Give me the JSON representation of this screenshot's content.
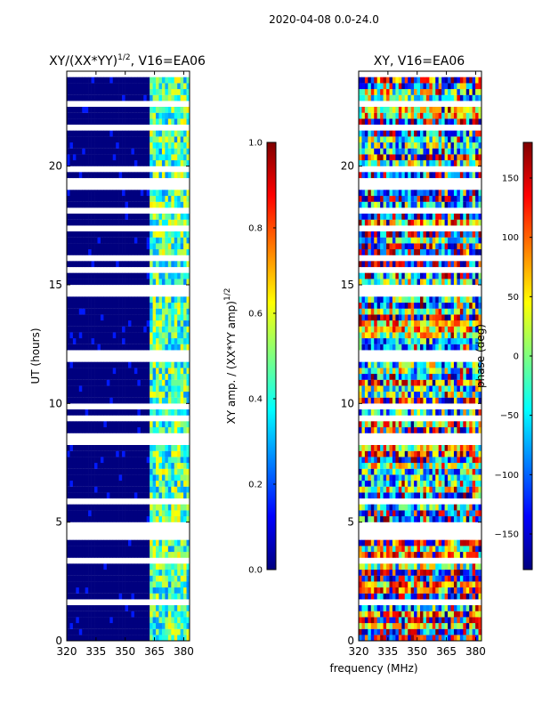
{
  "suptitle": "2020-04-08 0.0-24.0",
  "colors": {
    "background": "#00007f",
    "jet": [
      "#00007f",
      "#0000ff",
      "#007fff",
      "#00ffff",
      "#7fff7f",
      "#ffff00",
      "#ff7f00",
      "#ff0000",
      "#7f0000"
    ]
  },
  "chart_data": [
    {
      "type": "heatmap",
      "title_main": "XY/(XX*YY)",
      "title_exp": "1/2",
      "title_tail": ", V16=EA06",
      "ylabel": "UT (hours)",
      "xlabel": "",
      "xlim": [
        320,
        383
      ],
      "ylim": [
        0,
        24
      ],
      "xticks": [
        "320",
        "335",
        "350",
        "365",
        "380"
      ],
      "yticks": [
        "0",
        "5",
        "10",
        "15",
        "20"
      ],
      "xtick_values": [
        320,
        335,
        350,
        365,
        380
      ],
      "ytick_values": [
        0,
        5,
        10,
        15,
        20
      ],
      "description": "normalized XY amplitude, low (~0) below 362 MHz, higher (0.3-0.6) above 362 MHz with frequent gaps",
      "signal_start_mhz": 362,
      "colorbar": {
        "label_main": "XY amp. / (XX*YY amp)",
        "label_exp": "1/2",
        "range": [
          0,
          1
        ],
        "ticks": [
          "0.0",
          "0.2",
          "0.4",
          "0.6",
          "0.8",
          "1.0"
        ],
        "tick_values": [
          0.0,
          0.2,
          0.4,
          0.6,
          0.8,
          1.0
        ]
      }
    },
    {
      "type": "heatmap",
      "title": "XY, V16=EA06",
      "xlabel": "frequency (MHz)",
      "xlim": [
        320,
        383
      ],
      "ylim": [
        0,
        24
      ],
      "xticks": [
        "320",
        "335",
        "350",
        "365",
        "380"
      ],
      "yticks": [
        "0",
        "5",
        "10",
        "15",
        "20"
      ],
      "xtick_values": [
        320,
        335,
        350,
        365,
        380
      ],
      "ytick_values": [
        0,
        5,
        10,
        15,
        20
      ],
      "description": "XY phase, noisy values spanning -180 to 180 degrees with frequent gaps",
      "colorbar": {
        "label": "phase (deg)",
        "range": [
          -180,
          180
        ],
        "ticks": [
          "−150",
          "−100",
          "−50",
          "0",
          "50",
          "100",
          "150"
        ],
        "tick_values": [
          -150,
          -100,
          -50,
          0,
          50,
          100,
          150
        ]
      }
    }
  ]
}
